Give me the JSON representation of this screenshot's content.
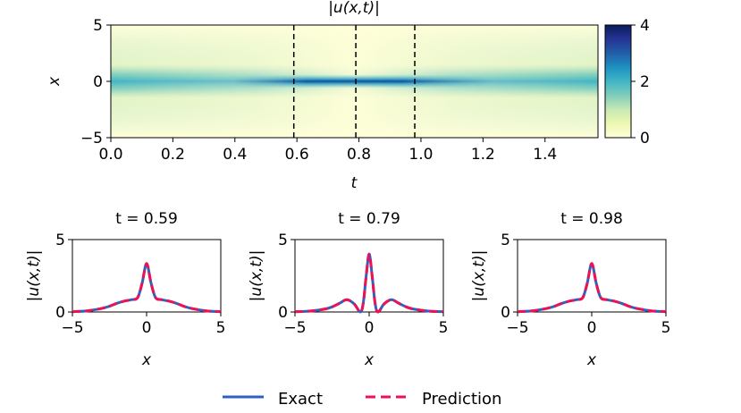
{
  "colors": {
    "exact": "#3060c0",
    "prediction": "#ee1155",
    "colormap": [
      "#ffffd9",
      "#edf8b1",
      "#c7e9b4",
      "#7fcdbb",
      "#41b6c4",
      "#1d91c0",
      "#225ea8",
      "#253494",
      "#081d58"
    ]
  },
  "chart_data": [
    {
      "type": "heatmap",
      "title": "|u(x,t)|",
      "xlabel": "t",
      "ylabel": "x",
      "xlim": [
        0,
        1.5708
      ],
      "ylim": [
        -5,
        5
      ],
      "xticks": [
        "0.0",
        "0.2",
        "0.4",
        "0.6",
        "0.8",
        "1.0",
        "1.2",
        "1.4"
      ],
      "xtick_values": [
        0,
        0.2,
        0.4,
        0.6,
        0.8,
        1.0,
        1.2,
        1.4
      ],
      "yticks": [
        "−5",
        "0",
        "5"
      ],
      "ytick_values": [
        -5,
        0,
        5
      ],
      "vlines": [
        0.59,
        0.79,
        0.98
      ],
      "colorbar": {
        "range": [
          0,
          4
        ],
        "ticks": [
          "0",
          "2",
          "4"
        ],
        "tick_values": [
          0,
          2,
          4
        ]
      }
    },
    {
      "type": "line",
      "title": "t = 0.59",
      "xlabel": "x",
      "ylabel": "|u(x,t)|",
      "xlim": [
        -5,
        5
      ],
      "ylim": [
        0,
        5
      ],
      "xticks": [
        "−5",
        "0",
        "5"
      ],
      "yticks": [
        "0",
        "5"
      ],
      "x": [
        -5,
        -4,
        -3,
        -2.5,
        -2,
        -1.5,
        -1,
        -0.6,
        -0.3,
        0,
        0.3,
        0.6,
        1,
        1.5,
        2,
        2.5,
        3,
        4,
        5
      ],
      "series": [
        {
          "name": "Exact",
          "values": [
            0.02,
            0.08,
            0.25,
            0.4,
            0.6,
            0.75,
            0.85,
            1.0,
            2.0,
            3.35,
            2.0,
            1.0,
            0.85,
            0.75,
            0.6,
            0.4,
            0.25,
            0.08,
            0.02
          ]
        },
        {
          "name": "Prediction",
          "values": [
            0.02,
            0.08,
            0.25,
            0.4,
            0.6,
            0.75,
            0.85,
            1.0,
            2.0,
            3.35,
            2.0,
            1.0,
            0.85,
            0.75,
            0.6,
            0.4,
            0.25,
            0.08,
            0.02
          ]
        }
      ]
    },
    {
      "type": "line",
      "title": "t = 0.79",
      "xlabel": "x",
      "ylabel": "|u(x,t)|",
      "xlim": [
        -5,
        5
      ],
      "ylim": [
        0,
        5
      ],
      "xticks": [
        "−5",
        "0",
        "5"
      ],
      "yticks": [
        "0",
        "5"
      ],
      "x": [
        -5,
        -4,
        -3,
        -2.5,
        -2,
        -1.5,
        -1,
        -0.6,
        -0.4,
        -0.2,
        0,
        0.2,
        0.4,
        0.6,
        1,
        1.5,
        2,
        2.5,
        3,
        4,
        5
      ],
      "series": [
        {
          "name": "Exact",
          "values": [
            0.02,
            0.06,
            0.2,
            0.35,
            0.6,
            0.85,
            0.55,
            0.0,
            0.6,
            2.5,
            4.0,
            2.5,
            0.6,
            0.0,
            0.55,
            0.85,
            0.6,
            0.35,
            0.2,
            0.06,
            0.02
          ]
        },
        {
          "name": "Prediction",
          "values": [
            0.02,
            0.06,
            0.2,
            0.35,
            0.6,
            0.85,
            0.55,
            0.0,
            0.6,
            2.5,
            4.0,
            2.5,
            0.6,
            0.0,
            0.55,
            0.85,
            0.6,
            0.35,
            0.2,
            0.06,
            0.02
          ]
        }
      ]
    },
    {
      "type": "line",
      "title": "t = 0.98",
      "xlabel": "x",
      "ylabel": "|u(x,t)|",
      "xlim": [
        -5,
        5
      ],
      "ylim": [
        0,
        5
      ],
      "xticks": [
        "−5",
        "0",
        "5"
      ],
      "yticks": [
        "0",
        "5"
      ],
      "x": [
        -5,
        -4,
        -3,
        -2.5,
        -2,
        -1.5,
        -1,
        -0.6,
        -0.3,
        0,
        0.3,
        0.6,
        1,
        1.5,
        2,
        2.5,
        3,
        4,
        5
      ],
      "series": [
        {
          "name": "Exact",
          "values": [
            0.02,
            0.08,
            0.25,
            0.4,
            0.6,
            0.75,
            0.85,
            1.0,
            2.0,
            3.35,
            2.0,
            1.0,
            0.85,
            0.75,
            0.6,
            0.4,
            0.25,
            0.08,
            0.02
          ]
        },
        {
          "name": "Prediction",
          "values": [
            0.02,
            0.08,
            0.25,
            0.4,
            0.6,
            0.75,
            0.85,
            1.0,
            2.0,
            3.35,
            2.0,
            1.0,
            0.85,
            0.75,
            0.6,
            0.4,
            0.25,
            0.08,
            0.02
          ]
        }
      ]
    }
  ],
  "legend": {
    "entries": [
      {
        "label": "Exact",
        "style": "solid"
      },
      {
        "label": "Prediction",
        "style": "dashed"
      }
    ],
    "position": "bottom-center"
  }
}
